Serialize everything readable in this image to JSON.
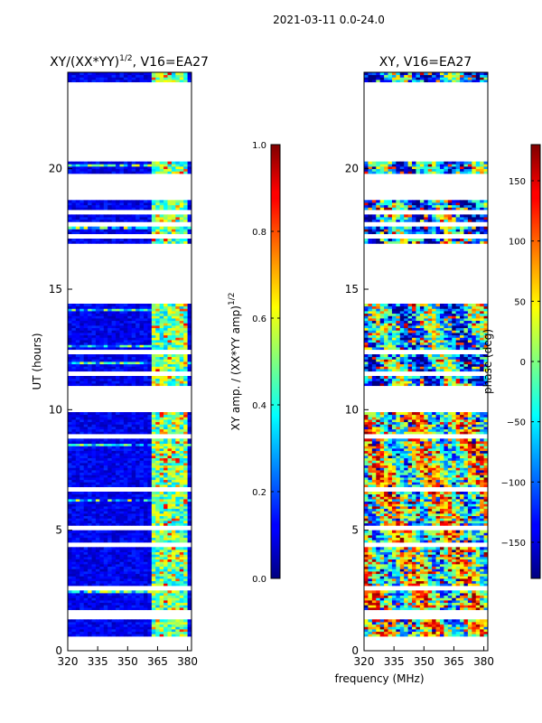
{
  "figure": {
    "suptitle": "2021-03-11 0.0-24.0",
    "xlabel": "frequency (MHz)"
  },
  "chart_data": [
    {
      "type": "heatmap",
      "title": "XY/(XX*YY)",
      "title_exponent": "1/2",
      "title_suffix": ", V16=EA27",
      "xlabel": "frequency (MHz)",
      "ylabel": "UT (hours)",
      "xlim": [
        320,
        382
      ],
      "ylim": [
        0,
        24
      ],
      "xticks": [
        320,
        335,
        350,
        365,
        380
      ],
      "yticks": [
        0,
        5,
        10,
        15,
        20
      ],
      "data_time_ranges_hours": [
        [
          0.6,
          23.6
        ]
      ],
      "colorbar": {
        "label": "XY amp. / (XX*YY amp)",
        "label_exponent": "1/2",
        "vmin": 0.0,
        "vmax": 1.0,
        "ticks": [
          0.0,
          0.2,
          0.4,
          0.6,
          0.8,
          1.0
        ],
        "tick_labels": [
          "0.0",
          "0.2",
          "0.4",
          "0.6",
          "0.8",
          "1.0"
        ],
        "colormap": "jet"
      }
    },
    {
      "type": "heatmap",
      "title": "XY",
      "title_suffix": ", V16=EA27",
      "xlabel": "frequency (MHz)",
      "ylabel": "",
      "xlim": [
        320,
        382
      ],
      "ylim": [
        0,
        24
      ],
      "xticks": [
        320,
        335,
        350,
        365,
        380
      ],
      "yticks": [
        0,
        5,
        10,
        15,
        20
      ],
      "colorbar": {
        "label": "phase (deg)",
        "vmin": -180,
        "vmax": 180,
        "ticks": [
          -150,
          -100,
          -50,
          0,
          50,
          100,
          150
        ],
        "tick_labels": [
          "−150",
          "−100",
          "−50",
          "0",
          "50",
          "100",
          "150"
        ],
        "colormap": "jet"
      }
    }
  ],
  "data_coverage_hours": {
    "blocks": [
      [
        0.6,
        9.9
      ],
      [
        11.0,
        14.4
      ],
      [
        16.9,
        18.7
      ],
      [
        19.8,
        20.3
      ],
      [
        23.6,
        24.0
      ]
    ],
    "gaps": [
      1.4,
      1.6,
      2.6,
      4.4,
      5.1,
      6.7,
      8.9,
      12.4,
      11.5,
      17.2,
      17.7,
      18.2
    ]
  }
}
